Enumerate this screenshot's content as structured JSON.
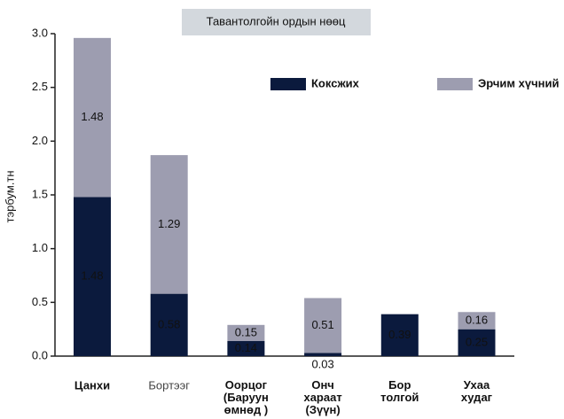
{
  "chart_data": {
    "type": "stacked_bar",
    "title": "Тавантолгойн ордын нөөц",
    "y_label": "тэрбум.тн",
    "categories": [
      "Цанхи",
      "Бортээг",
      "Оорцог (Баруун өмнөд )",
      "Онч хараат (Зүүн)",
      "Бор толгой",
      "Ухаа худаг"
    ],
    "series": [
      {
        "name": "Коксжих",
        "color": "#0b1a3d",
        "values": [
          1.48,
          0.58,
          0.14,
          0.03,
          0.39,
          0.25
        ]
      },
      {
        "name": "Эрчим хүчний",
        "color": "#9d9db0",
        "values": [
          1.48,
          1.29,
          0.15,
          0.51,
          null,
          0.16
        ]
      }
    ],
    "ylim": [
      0,
      3
    ],
    "yticks": [
      {
        "value": 0,
        "label": "0.0"
      },
      0.5,
      {
        "value": 1,
        "label": "1.0"
      },
      1.5,
      {
        "value": 2,
        "label": "2.0"
      },
      2.5,
      {
        "value": 3,
        "label": "3.0"
      }
    ]
  }
}
